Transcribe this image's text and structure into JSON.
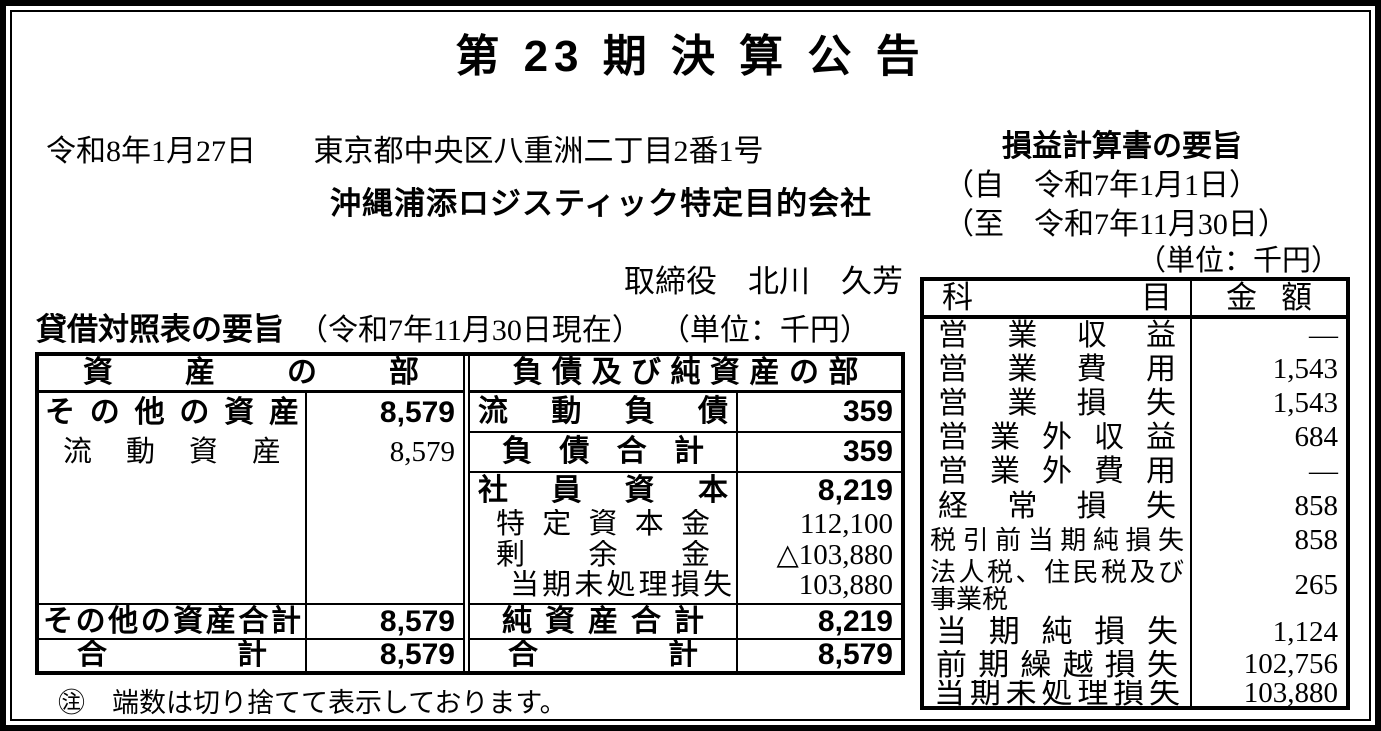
{
  "page": {
    "title": "第 23 期 決 算 公 告"
  },
  "header": {
    "date": "令和8年1月27日",
    "address": "東京都中央区八重洲二丁目2番1号",
    "company": "沖縄浦添ロジスティック特定目的会社",
    "representative": "取締役　北川　久芳"
  },
  "balance_sheet": {
    "caption": "貸借対照表の要旨",
    "as_of": "（令和7年11月30日現在）",
    "unit": "（単位：千円）",
    "assets": {
      "header": "資産の部",
      "rows": [
        {
          "label": "その他の資産",
          "value": "8,579"
        },
        {
          "label": "流動資産",
          "value": "8,579"
        }
      ],
      "totals": [
        {
          "label": "その他の資産合計",
          "value": "8,579"
        },
        {
          "label": "合計",
          "value": "8,579"
        }
      ]
    },
    "liabilities": {
      "header": "負債及び純資産の部",
      "rows": [
        {
          "label": "流動負債",
          "value": "359"
        },
        {
          "label": "負債合計",
          "value": "359"
        },
        {
          "label": "社員資本",
          "value": "8,219"
        },
        {
          "label": "特定資本金",
          "value": "112,100"
        },
        {
          "label": "剰余金",
          "value": "△103,880"
        },
        {
          "label": "当期未処理損失",
          "value": "103,880"
        }
      ],
      "totals": [
        {
          "label": "純資産合計",
          "value": "8,219"
        },
        {
          "label": "合計",
          "value": "8,579"
        }
      ]
    },
    "note": "㊟　端数は切り捨てて表示しております。"
  },
  "income_statement": {
    "caption": "損益計算書の要旨",
    "period_from": "（自　令和7年1月1日）",
    "period_to": "（至　令和7年11月30日）",
    "unit": "（単位：千円）",
    "columns": {
      "item": "科目",
      "amount": "金額"
    },
    "rows": [
      {
        "label": "営業収益",
        "value": "―"
      },
      {
        "label": "営業費用",
        "value": "1,543"
      },
      {
        "label": "営業損失",
        "value": "1,543"
      },
      {
        "label": "営業外収益",
        "value": "684"
      },
      {
        "label": "営業外費用",
        "value": "―"
      },
      {
        "label": "経常損失",
        "value": "858"
      },
      {
        "label": "税引前当期純損失",
        "value": "858"
      },
      {
        "label": "法人税、住民税及び事業税",
        "value": "265"
      },
      {
        "label": "当期純損失",
        "value": "1,124"
      },
      {
        "label": "前期繰越損失",
        "value": "102,756"
      },
      {
        "label": "当期未処理損失",
        "value": "103,880"
      }
    ]
  }
}
